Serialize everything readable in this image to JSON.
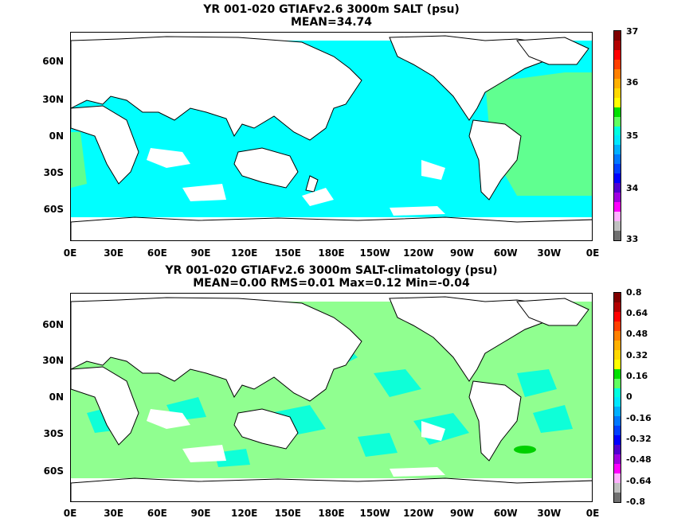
{
  "panel_top": {
    "title_line1": "YR 001-020 GTIAFv2.6 3000m SALT (psu)",
    "title_line2": "MEAN=34.74",
    "colorbar_labels": [
      "37",
      "36",
      "35",
      "34",
      "33"
    ],
    "colorbar_colors": [
      "#7f0000",
      "#b20000",
      "#ff0000",
      "#ff4000",
      "#ff8000",
      "#ffb000",
      "#ffd800",
      "#ffff00",
      "#00e000",
      "#60ff60",
      "#00ffe0",
      "#00e8ff",
      "#00b0ff",
      "#0078ff",
      "#0040ff",
      "#0000ff",
      "#5000d0",
      "#a000e0",
      "#ff00ff",
      "#ffb0ff",
      "#c0c0c0",
      "#707070"
    ]
  },
  "panel_bottom": {
    "title_line1": "YR 001-020 GTIAFv2.6 3000m SALT-climatology (psu)",
    "title_line2": "MEAN=0.00   RMS=0.01   Max=0.12   Min=-0.04",
    "colorbar_labels": [
      "0.8",
      "0.64",
      "0.48",
      "0.32",
      "0.16",
      "0",
      "-0.16",
      "-0.32",
      "-0.48",
      "-0.64",
      "-0.8"
    ],
    "colorbar_colors": [
      "#7f0000",
      "#b20000",
      "#ff0000",
      "#ff4000",
      "#ff8000",
      "#ffb000",
      "#ffd800",
      "#ffff00",
      "#00e000",
      "#60ff60",
      "#00ffe0",
      "#00e8ff",
      "#00b0ff",
      "#0078ff",
      "#0040ff",
      "#0000ff",
      "#5000d0",
      "#a000e0",
      "#ff00ff",
      "#ffb0ff",
      "#c0c0c0",
      "#707070"
    ]
  },
  "lat_labels": [
    "60N",
    "30N",
    "0N",
    "30S",
    "60S"
  ],
  "lon_labels": [
    "0E",
    "30E",
    "60E",
    "90E",
    "120E",
    "150E",
    "180E",
    "150W",
    "120W",
    "90W",
    "60W",
    "30W",
    "0E"
  ],
  "colors": {
    "ocean_top": "#00ffff",
    "ocean_top_atlantic": "#60ff90",
    "ocean_bottom": "#90ff90",
    "ocean_bottom_patches": "#00ffe0",
    "land": "#ffffff"
  }
}
